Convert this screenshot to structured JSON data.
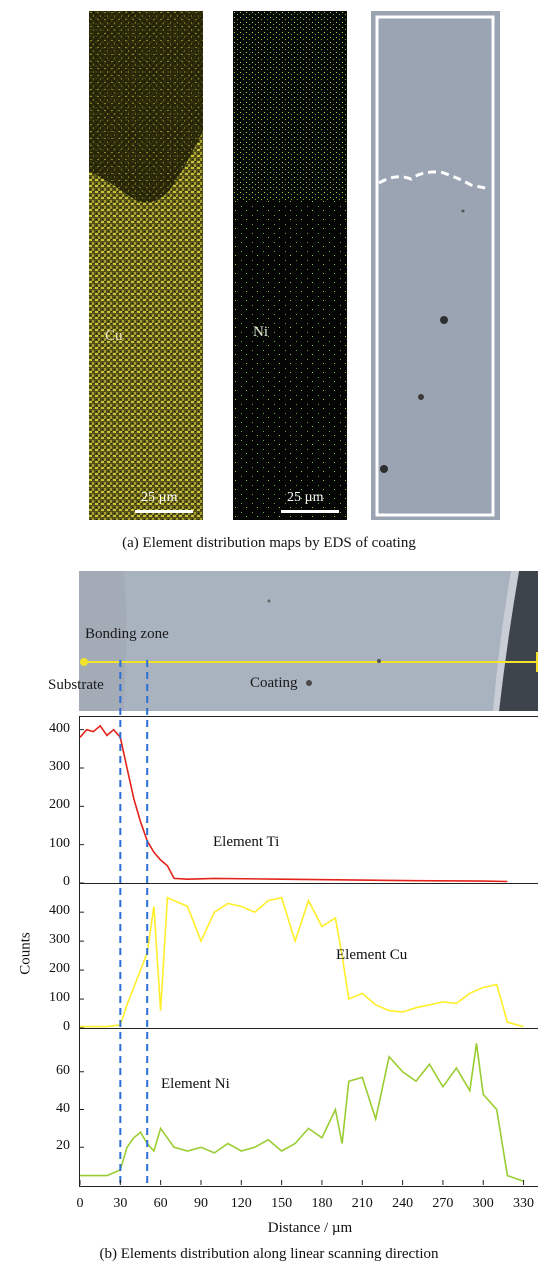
{
  "figure_a": {
    "maps": [
      {
        "label": "Cu",
        "scale": "25 µm"
      },
      {
        "label": "Ni",
        "scale": "25 µm"
      },
      {
        "label": "",
        "scale": ""
      }
    ],
    "caption": "(a) Element distribution maps by EDS of coating"
  },
  "figure_b": {
    "image_labels": {
      "bonding_zone": "Bonding zone",
      "substrate": "Substrate",
      "coating": "Coating"
    },
    "caption": "(b) Elements distribution along linear scanning direction"
  },
  "chart_data": {
    "type": "line",
    "title": "",
    "xlabel": "Distance / µm",
    "ylabel": "Counts",
    "x_ticks": [
      0,
      30,
      60,
      90,
      120,
      150,
      180,
      210,
      240,
      270,
      300,
      330
    ],
    "xlim": [
      0,
      340
    ],
    "boundaries": [
      30,
      50
    ],
    "colors": {
      "Ti": "#e3241b",
      "Cu": "#ffee2a",
      "Ni": "#9acd32",
      "boundary": "#2b6fd6",
      "scan": "#f2e32a"
    },
    "panels": [
      {
        "name": "Element Ti",
        "ylim": [
          0,
          420
        ],
        "y_ticks": [
          0,
          100,
          200,
          300,
          400
        ],
        "x": [
          0,
          5,
          10,
          15,
          20,
          25,
          30,
          35,
          40,
          45,
          50,
          55,
          60,
          65,
          70,
          80,
          100,
          150,
          200,
          250,
          300,
          318
        ],
        "values": [
          380,
          400,
          395,
          410,
          385,
          400,
          380,
          300,
          220,
          160,
          110,
          80,
          60,
          45,
          12,
          10,
          12,
          10,
          8,
          6,
          5,
          4
        ]
      },
      {
        "name": "Element Cu",
        "ylim": [
          0,
          480
        ],
        "y_ticks": [
          0,
          100,
          200,
          300,
          400
        ],
        "x": [
          0,
          20,
          30,
          35,
          40,
          45,
          50,
          55,
          60,
          65,
          70,
          80,
          90,
          100,
          110,
          120,
          130,
          140,
          150,
          160,
          170,
          180,
          190,
          195,
          200,
          210,
          220,
          230,
          240,
          250,
          260,
          270,
          280,
          290,
          300,
          310,
          318,
          330
        ],
        "values": [
          5,
          5,
          10,
          80,
          140,
          200,
          260,
          420,
          60,
          450,
          440,
          420,
          300,
          400,
          430,
          420,
          400,
          440,
          450,
          300,
          440,
          350,
          380,
          250,
          100,
          120,
          80,
          60,
          55,
          70,
          80,
          90,
          85,
          120,
          140,
          150,
          20,
          5
        ]
      },
      {
        "name": "Element Ni",
        "ylim": [
          0,
          80
        ],
        "y_ticks": [
          20,
          40,
          60
        ],
        "x": [
          0,
          20,
          30,
          35,
          40,
          45,
          50,
          55,
          60,
          70,
          80,
          90,
          100,
          110,
          120,
          130,
          140,
          150,
          160,
          170,
          180,
          190,
          195,
          200,
          210,
          220,
          230,
          240,
          250,
          260,
          270,
          280,
          290,
          295,
          300,
          310,
          318,
          330
        ],
        "values": [
          5,
          5,
          8,
          20,
          25,
          28,
          22,
          18,
          30,
          20,
          18,
          20,
          17,
          22,
          18,
          20,
          24,
          18,
          22,
          30,
          25,
          40,
          22,
          55,
          57,
          35,
          68,
          60,
          55,
          64,
          52,
          62,
          50,
          75,
          48,
          40,
          5,
          2
        ]
      }
    ]
  }
}
